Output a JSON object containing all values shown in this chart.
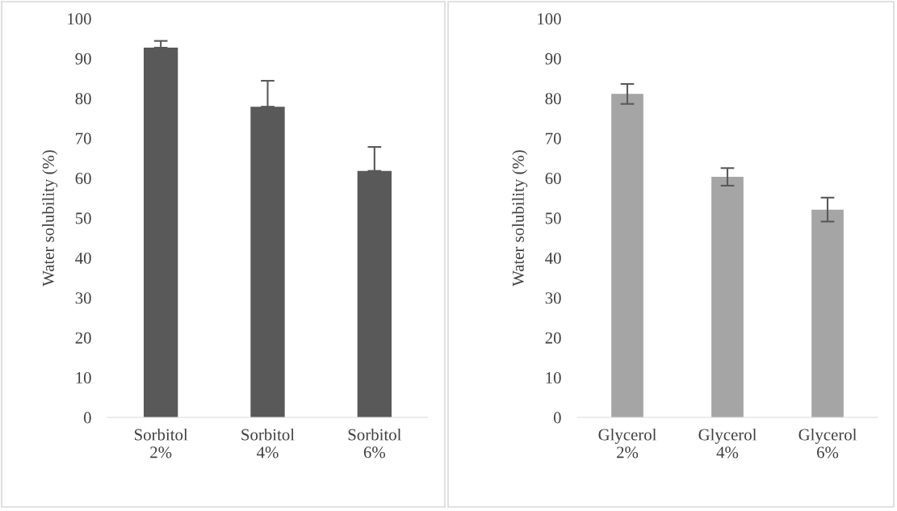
{
  "chart_data": [
    {
      "type": "bar",
      "ylabel": "Water solubility (%)",
      "categories": [
        "Sorbitol\n2%",
        "Sorbitol\n4%",
        "Sorbitol\n6%"
      ],
      "values": [
        92.7,
        77.9,
        61.8
      ],
      "color": "#595959",
      "errors": [
        [
          92.7,
          94.4
        ],
        [
          77.9,
          84.4
        ],
        [
          61.8,
          67.8
        ]
      ],
      "ylim": [
        0,
        100
      ],
      "yticks": [
        0,
        10,
        20,
        30,
        40,
        50,
        60,
        70,
        80,
        90,
        100
      ],
      "grid": false
    },
    {
      "type": "bar",
      "ylabel": "Water solubility (%)",
      "categories": [
        "Glycerol\n2%",
        "Glycerol\n4%",
        "Glycerol\n6%"
      ],
      "values": [
        81.1,
        60.3,
        52.1
      ],
      "color": "#a5a5a5",
      "errors": [
        2.5,
        2.2,
        3.0
      ],
      "ylim": [
        0,
        100
      ],
      "yticks": [
        0,
        10,
        20,
        30,
        40,
        50,
        60,
        70,
        80,
        90,
        100
      ],
      "grid": false
    }
  ]
}
